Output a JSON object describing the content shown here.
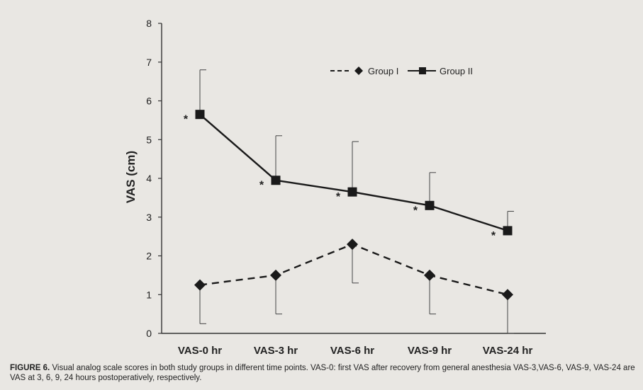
{
  "figure": {
    "label": "FIGURE 6.",
    "caption": "Visual analog scale scores in both study groups in different time points. VAS-0: first VAS after recovery from general anesthesia VAS-3,VAS-6, VAS-9, VAS-24 are VAS at 3, 6, 9, 24 hours postoperatively, respectively."
  },
  "chart_data": {
    "type": "line",
    "title": "",
    "xlabel": "",
    "ylabel": "VAS  (cm)",
    "categories": [
      "VAS-0 hr",
      "VAS-3 hr",
      "VAS-6 hr",
      "VAS-9 hr",
      "VAS-24 hr"
    ],
    "ylim": [
      0,
      8
    ],
    "yticks": [
      0,
      1,
      2,
      3,
      4,
      5,
      6,
      7,
      8
    ],
    "grid": false,
    "legend": "top-right",
    "series": [
      {
        "name": "Group I",
        "values": [
          1.25,
          1.5,
          2.3,
          1.5,
          1.0
        ],
        "error_low": [
          0.25,
          0.5,
          1.3,
          0.5,
          0.0
        ],
        "line_style": "dashed",
        "marker": "diamond",
        "color": "#1a1a1a"
      },
      {
        "name": "Group II",
        "values": [
          5.65,
          3.95,
          3.65,
          3.3,
          2.65
        ],
        "error_high": [
          6.8,
          5.1,
          4.95,
          4.15,
          3.15
        ],
        "line_style": "solid",
        "marker": "square",
        "color": "#1a1a1a"
      }
    ],
    "annotations": [
      {
        "category": "VAS-0 hr",
        "y": 5.65,
        "text": "*"
      },
      {
        "category": "VAS-3 hr",
        "y": 3.95,
        "text": "*"
      },
      {
        "category": "VAS-6 hr",
        "y": 3.65,
        "text": "*"
      },
      {
        "category": "VAS-9 hr",
        "y": 3.3,
        "text": "*"
      },
      {
        "category": "VAS-24 hr",
        "y": 2.65,
        "text": "*"
      }
    ]
  }
}
